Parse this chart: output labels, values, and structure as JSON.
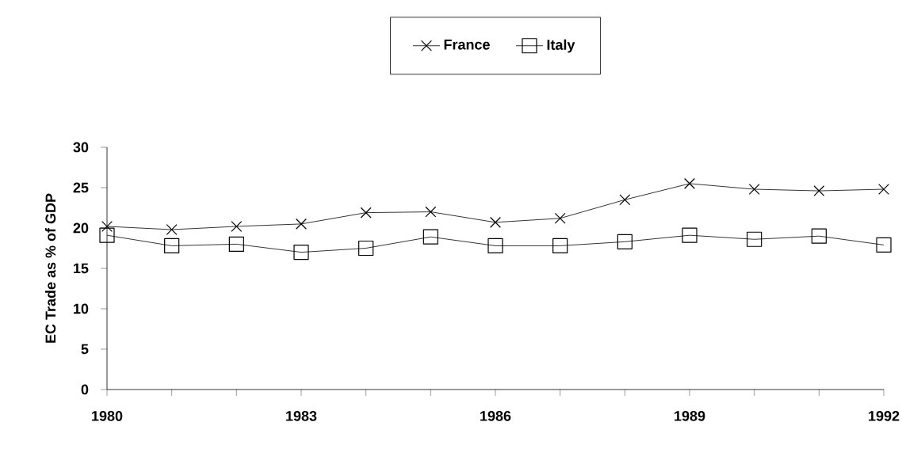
{
  "chart_data": {
    "type": "line",
    "ylabel": "EC Trade as % of GDP",
    "x": [
      1980,
      1981,
      1982,
      1983,
      1984,
      1985,
      1986,
      1987,
      1988,
      1989,
      1990,
      1991,
      1992
    ],
    "series": [
      {
        "name": "France",
        "color": "#000000",
        "marker": "cross",
        "values": [
          20.2,
          19.8,
          20.2,
          20.5,
          21.9,
          22.0,
          20.7,
          21.2,
          23.5,
          25.5,
          24.8,
          24.6,
          24.8
        ]
      },
      {
        "name": "Italy",
        "color": "#000000",
        "marker": "square",
        "values": [
          19.1,
          17.8,
          18.0,
          17.0,
          17.5,
          18.9,
          17.8,
          17.8,
          18.3,
          19.1,
          18.6,
          19.0,
          17.9
        ]
      }
    ],
    "xlim": [
      1980,
      1992
    ],
    "xticks": [
      1980,
      {
        "value": 1981,
        "label": null
      },
      {
        "value": 1982,
        "label": null
      },
      1983,
      {
        "value": 1984,
        "label": null
      },
      {
        "value": 1985,
        "label": null
      },
      1986,
      {
        "value": 1987,
        "label": null
      },
      {
        "value": 1988,
        "label": null
      },
      1989,
      {
        "value": 1990,
        "label": null
      },
      {
        "value": 1991,
        "label": null
      },
      1992
    ],
    "ylim": [
      0,
      30
    ],
    "yticks": [
      0,
      5,
      10,
      15,
      20,
      25,
      30
    ],
    "grid": false,
    "legend": "top",
    "line_style": "solid"
  }
}
